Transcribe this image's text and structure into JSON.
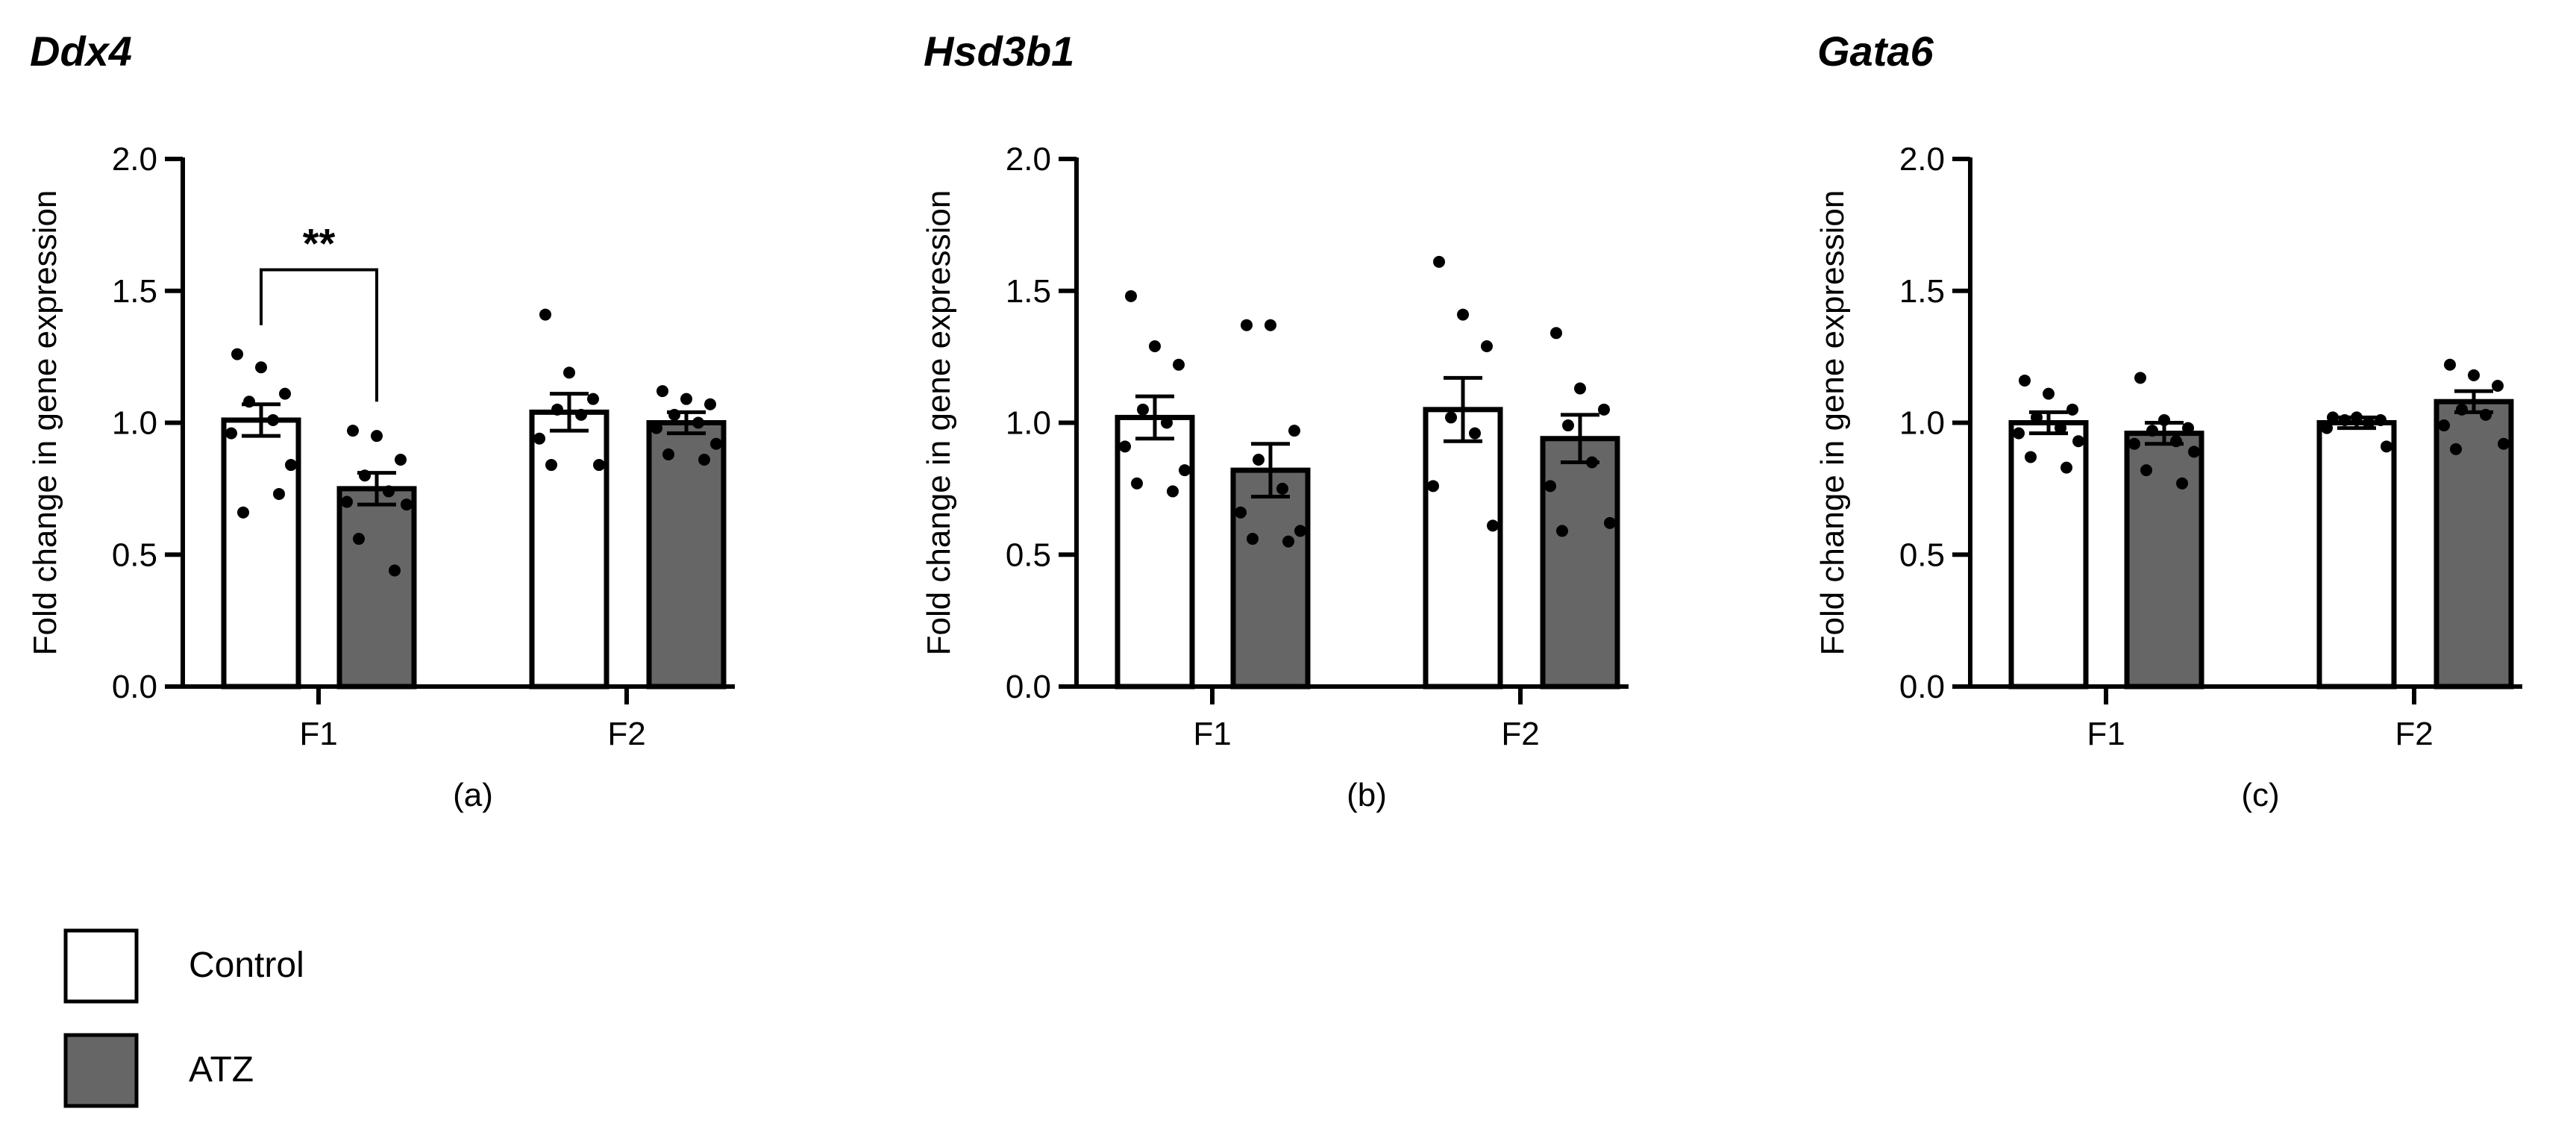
{
  "colors": {
    "control": "#ffffff",
    "atz": "#666666",
    "stroke": "#000000",
    "point": "#000000"
  },
  "legend": [
    {
      "key": "control",
      "label": "Control"
    },
    {
      "key": "atz",
      "label": "ATZ"
    }
  ],
  "chart_data": [
    {
      "type": "bar",
      "title": "Ddx4",
      "panel_label": "(a)",
      "xlabel": "",
      "ylabel": "Fold change in gene expression",
      "ylim": [
        0,
        2.0
      ],
      "yticks": [
        "0.0",
        "0.5",
        "1.0",
        "1.5",
        "2.0"
      ],
      "categories": [
        "F1",
        "F2"
      ],
      "series": [
        {
          "name": "Control",
          "values": [
            1.01,
            1.04
          ],
          "sem": [
            0.06,
            0.07
          ],
          "points": [
            [
              1.26,
              1.21,
              1.11,
              1.08,
              1.01,
              0.96,
              0.84,
              0.66,
              0.73
            ],
            [
              1.41,
              1.19,
              1.09,
              1.05,
              1.03,
              0.94,
              0.84,
              0.84
            ]
          ]
        },
        {
          "name": "ATZ",
          "values": [
            0.75,
            1.0
          ],
          "sem": [
            0.06,
            0.04
          ],
          "points": [
            [
              0.97,
              0.95,
              0.86,
              0.8,
              0.74,
              0.7,
              0.69,
              0.56,
              0.44
            ],
            [
              1.12,
              1.09,
              1.07,
              1.03,
              1.0,
              0.98,
              0.92,
              0.88,
              0.86
            ]
          ]
        }
      ],
      "significance": [
        {
          "category": "F1",
          "label": "**",
          "y": 1.6
        }
      ]
    },
    {
      "type": "bar",
      "title": "Hsd3b1",
      "panel_label": "(b)",
      "xlabel": "",
      "ylabel": "Fold change in gene expression",
      "ylim": [
        0,
        2.0
      ],
      "yticks": [
        "0.0",
        "0.5",
        "1.0",
        "1.5",
        "2.0"
      ],
      "categories": [
        "F1",
        "F2"
      ],
      "series": [
        {
          "name": "Control",
          "values": [
            1.02,
            1.05
          ],
          "sem": [
            0.08,
            0.12
          ],
          "points": [
            [
              1.48,
              1.29,
              1.22,
              1.05,
              1.0,
              0.91,
              0.82,
              0.77,
              0.74
            ],
            [
              1.61,
              1.41,
              1.29,
              1.02,
              0.96,
              0.76,
              0.61
            ]
          ]
        },
        {
          "name": "ATZ",
          "values": [
            0.82,
            0.94
          ],
          "sem": [
            0.1,
            0.09
          ],
          "points": [
            [
              1.37,
              1.37,
              0.97,
              0.86,
              0.75,
              0.66,
              0.59,
              0.56,
              0.55
            ],
            [
              1.34,
              1.13,
              1.05,
              0.99,
              0.85,
              0.76,
              0.62,
              0.59
            ]
          ]
        }
      ],
      "significance": []
    },
    {
      "type": "bar",
      "title": "Gata6",
      "panel_label": "(c)",
      "xlabel": "",
      "ylabel": "Fold change in gene expression",
      "ylim": [
        0,
        2.0
      ],
      "yticks": [
        "0.0",
        "0.5",
        "1.0",
        "1.5",
        "2.0"
      ],
      "categories": [
        "F1",
        "F2"
      ],
      "series": [
        {
          "name": "Control",
          "values": [
            1.0,
            1.0
          ],
          "sem": [
            0.04,
            0.02
          ],
          "points": [
            [
              1.16,
              1.11,
              1.05,
              1.02,
              0.98,
              0.96,
              0.93,
              0.87,
              0.83
            ],
            [
              1.02,
              1.02,
              1.01,
              1.01,
              1.0,
              0.98,
              0.91
            ]
          ]
        },
        {
          "name": "ATZ",
          "values": [
            0.96,
            1.08
          ],
          "sem": [
            0.04,
            0.04
          ],
          "points": [
            [
              1.17,
              1.01,
              0.98,
              0.97,
              0.93,
              0.92,
              0.89,
              0.82,
              0.77
            ],
            [
              1.22,
              1.18,
              1.14,
              1.05,
              1.03,
              0.99,
              0.92,
              0.9
            ]
          ]
        }
      ],
      "significance": []
    }
  ]
}
